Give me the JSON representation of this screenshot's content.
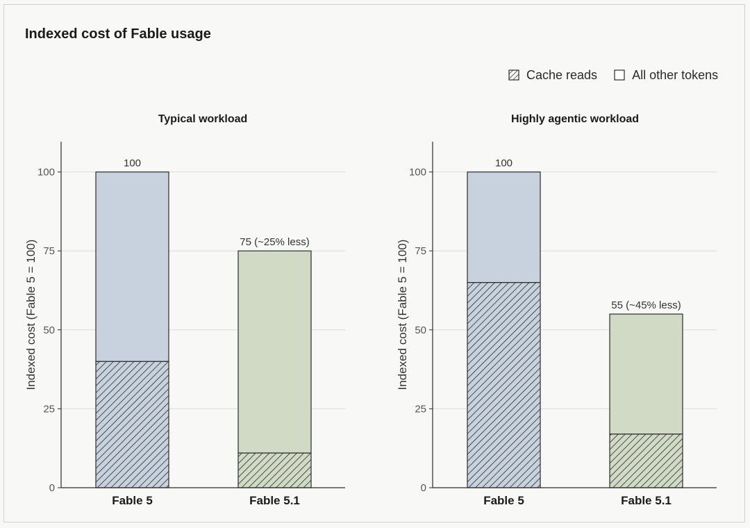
{
  "colors": {
    "blue_fill": "#c7d2de",
    "green_fill": "#d0dac5",
    "stroke": "#2b2b2b",
    "grid": "#dcdcdc"
  },
  "chart_data": {
    "type": "bar",
    "title": "Indexed cost of Fable usage",
    "legend": {
      "placement": "top-right",
      "entries": [
        {
          "name": "Cache reads",
          "pattern": "hatched"
        },
        {
          "name": "All other tokens",
          "pattern": "solid"
        }
      ]
    },
    "panels": [
      {
        "title": "Typical workload",
        "ylabel": "Indexed cost (Fable 5 = 100)",
        "ylim": [
          0,
          110
        ],
        "yticks": [
          0,
          25,
          50,
          75,
          100
        ],
        "grid": true,
        "categories": [
          "Fable 5",
          "Fable 5.1"
        ],
        "series": [
          {
            "name": "Cache reads",
            "values": [
              40,
              11
            ]
          },
          {
            "name": "All other tokens",
            "values": [
              60,
              64
            ]
          }
        ],
        "totals": [
          100,
          75
        ],
        "bar_colors": [
          "blue",
          "green"
        ],
        "data_labels": [
          "100",
          "75 (~25% less)"
        ]
      },
      {
        "title": "Highly agentic workload",
        "ylabel": "Indexed cost (Fable 5 = 100)",
        "ylim": [
          0,
          110
        ],
        "yticks": [
          0,
          25,
          50,
          75,
          100
        ],
        "grid": true,
        "categories": [
          "Fable 5",
          "Fable 5.1"
        ],
        "series": [
          {
            "name": "Cache reads",
            "values": [
              65,
              17
            ]
          },
          {
            "name": "All other tokens",
            "values": [
              35,
              38
            ]
          }
        ],
        "totals": [
          100,
          55
        ],
        "bar_colors": [
          "blue",
          "green"
        ],
        "data_labels": [
          "100",
          "55 (~45% less)"
        ]
      }
    ]
  }
}
